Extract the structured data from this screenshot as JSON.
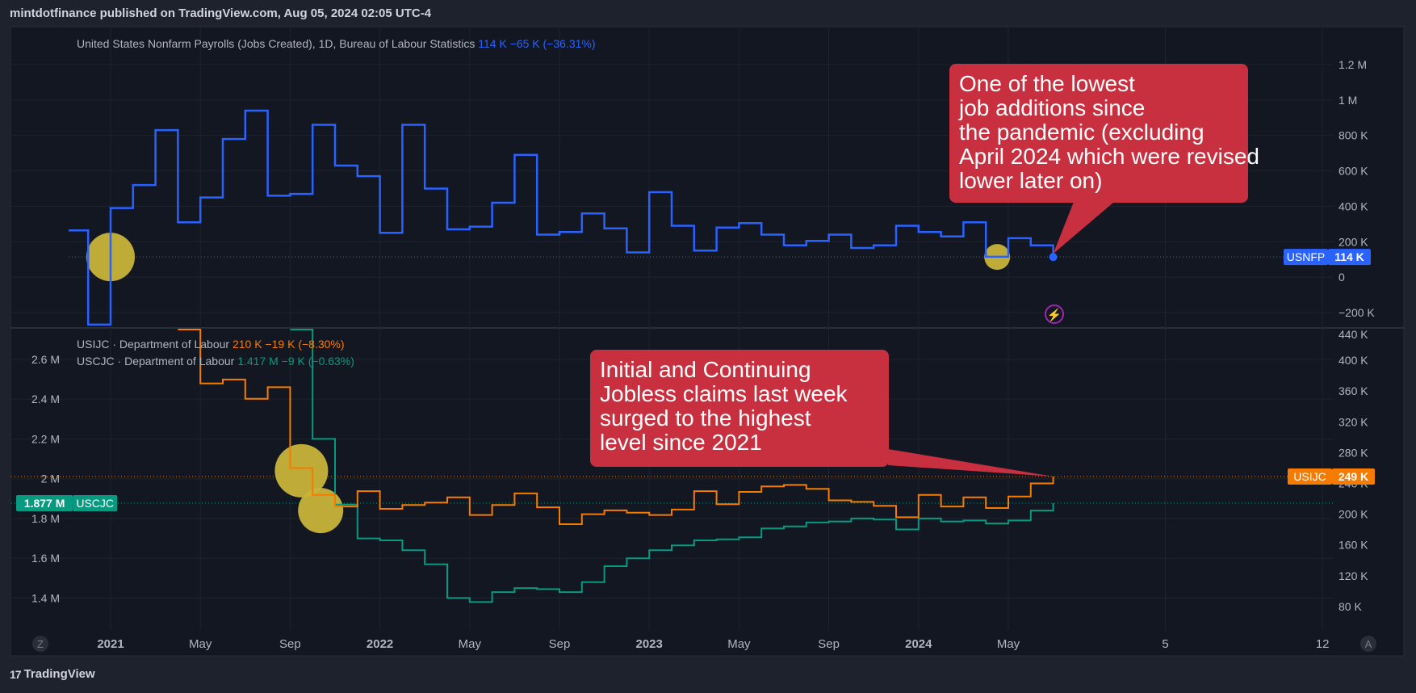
{
  "header": {
    "published": "mintdotfinance published on TradingView.com, Aug 05, 2024 02:05 UTC-4"
  },
  "footer": {
    "brand": "TradingView",
    "brand_icon": "tradingview-logo-icon"
  },
  "colors": {
    "background": "#1e222d",
    "pane": "#131722",
    "nfp": "#2962ff",
    "ijc": "#f57c00",
    "cjc": "#089981",
    "callout": "#c8303f",
    "marker": "#c8b43a"
  },
  "chart_data": [
    {
      "type": "line",
      "step": true,
      "legend": {
        "name": "United States Nonfarm Payrolls (Jobs Created), 1D, Bureau of Labour Statistics",
        "value": "114 K",
        "change": "−65 K (−36.31%)"
      },
      "yticks": [
        "1.2 M",
        "1 M",
        "800 K",
        "600 K",
        "400 K",
        "200 K",
        "0",
        "−200 K"
      ],
      "ylim": [
        -250000,
        1300000
      ],
      "badge": {
        "label": "USNFP",
        "value": "114 K"
      },
      "series": [
        {
          "color": "#2962ff",
          "values": [
            {
              "x": "2020-11",
              "y": 264000
            },
            {
              "x": "2020-12",
              "y": -268000
            },
            {
              "x": "2021-01",
              "y": 390000
            },
            {
              "x": "2021-02",
              "y": 520000
            },
            {
              "x": "2021-03",
              "y": 830000
            },
            {
              "x": "2021-04",
              "y": 310000
            },
            {
              "x": "2021-05",
              "y": 450000
            },
            {
              "x": "2021-06",
              "y": 780000
            },
            {
              "x": "2021-07",
              "y": 940000
            },
            {
              "x": "2021-08",
              "y": 460000
            },
            {
              "x": "2021-09",
              "y": 470000
            },
            {
              "x": "2021-10",
              "y": 860000
            },
            {
              "x": "2021-11",
              "y": 630000
            },
            {
              "x": "2021-12",
              "y": 570000
            },
            {
              "x": "2022-01",
              "y": 250000
            },
            {
              "x": "2022-02",
              "y": 860000
            },
            {
              "x": "2022-03",
              "y": 500000
            },
            {
              "x": "2022-04",
              "y": 270000
            },
            {
              "x": "2022-05",
              "y": 285000
            },
            {
              "x": "2022-06",
              "y": 420000
            },
            {
              "x": "2022-07",
              "y": 690000
            },
            {
              "x": "2022-08",
              "y": 240000
            },
            {
              "x": "2022-09",
              "y": 255000
            },
            {
              "x": "2022-10",
              "y": 360000
            },
            {
              "x": "2022-11",
              "y": 275000
            },
            {
              "x": "2022-12",
              "y": 140000
            },
            {
              "x": "2023-01",
              "y": 480000
            },
            {
              "x": "2023-02",
              "y": 290000
            },
            {
              "x": "2023-03",
              "y": 150000
            },
            {
              "x": "2023-04",
              "y": 280000
            },
            {
              "x": "2023-05",
              "y": 305000
            },
            {
              "x": "2023-06",
              "y": 240000
            },
            {
              "x": "2023-07",
              "y": 180000
            },
            {
              "x": "2023-08",
              "y": 205000
            },
            {
              "x": "2023-09",
              "y": 240000
            },
            {
              "x": "2023-10",
              "y": 165000
            },
            {
              "x": "2023-11",
              "y": 180000
            },
            {
              "x": "2023-12",
              "y": 290000
            },
            {
              "x": "2024-01",
              "y": 255000
            },
            {
              "x": "2024-02",
              "y": 230000
            },
            {
              "x": "2024-03",
              "y": 310000
            },
            {
              "x": "2024-04",
              "y": 115000
            },
            {
              "x": "2024-05",
              "y": 220000
            },
            {
              "x": "2024-06",
              "y": 180000
            },
            {
              "x": "2024-07",
              "y": 114000
            }
          ]
        }
      ],
      "annotations": [
        {
          "text": "One of the lowest job additions since the pandemic (excluding April 2024 which were revised lower later on)",
          "points_to": {
            "x": "2024-07",
            "y": 114000
          }
        }
      ],
      "markers": [
        {
          "x": "2021-01",
          "y": 114000
        },
        {
          "x": "2024-04",
          "y": 114000
        }
      ]
    },
    {
      "type": "line",
      "step": true,
      "legend": [
        {
          "name": "USIJC · Department of Labour",
          "value": "210 K",
          "change": "−19 K (−8.30%)"
        },
        {
          "name": "USCJC · Department of Labour",
          "value": "1.417 M",
          "change": "−9 K (−0.63%)"
        }
      ],
      "yticks_left": [
        "2.6 M",
        "2.4 M",
        "2.2 M",
        "2 M",
        "1.8 M",
        "1.6 M",
        "1.4 M"
      ],
      "yticks_right": [
        "440 K",
        "400 K",
        "360 K",
        "320 K",
        "280 K",
        "240 K",
        "200 K",
        "160 K",
        "120 K",
        "80 K"
      ],
      "ylim_left": [
        1280000,
        2750000
      ],
      "ylim_right": [
        60000,
        440000
      ],
      "badges": [
        {
          "label": "USIJC",
          "value": "249 K"
        },
        {
          "label": "USCJC",
          "value": "1.877 M"
        }
      ],
      "series": [
        {
          "color": "#f57c00",
          "axis": "right",
          "values": [
            {
              "x": "2021-04",
              "y": 440000
            },
            {
              "x": "2021-05",
              "y": 370000
            },
            {
              "x": "2021-06",
              "y": 375000
            },
            {
              "x": "2021-07",
              "y": 350000
            },
            {
              "x": "2021-08",
              "y": 365000
            },
            {
              "x": "2021-09",
              "y": 260000
            },
            {
              "x": "2021-10",
              "y": 225000
            },
            {
              "x": "2021-11",
              "y": 210000
            },
            {
              "x": "2021-12",
              "y": 230000
            },
            {
              "x": "2022-01",
              "y": 207000
            },
            {
              "x": "2022-02",
              "y": 212000
            },
            {
              "x": "2022-03",
              "y": 215000
            },
            {
              "x": "2022-04",
              "y": 222000
            },
            {
              "x": "2022-05",
              "y": 199000
            },
            {
              "x": "2022-06",
              "y": 212000
            },
            {
              "x": "2022-07",
              "y": 227000
            },
            {
              "x": "2022-08",
              "y": 209000
            },
            {
              "x": "2022-09",
              "y": 187000
            },
            {
              "x": "2022-10",
              "y": 200000
            },
            {
              "x": "2022-11",
              "y": 205000
            },
            {
              "x": "2022-12",
              "y": 202000
            },
            {
              "x": "2023-01",
              "y": 199000
            },
            {
              "x": "2023-02",
              "y": 206000
            },
            {
              "x": "2023-03",
              "y": 230000
            },
            {
              "x": "2023-04",
              "y": 213000
            },
            {
              "x": "2023-05",
              "y": 229000
            },
            {
              "x": "2023-06",
              "y": 236000
            },
            {
              "x": "2023-07",
              "y": 238000
            },
            {
              "x": "2023-08",
              "y": 233000
            },
            {
              "x": "2023-09",
              "y": 218000
            },
            {
              "x": "2023-10",
              "y": 216000
            },
            {
              "x": "2023-11",
              "y": 211000
            },
            {
              "x": "2023-12",
              "y": 196000
            },
            {
              "x": "2024-01",
              "y": 225000
            },
            {
              "x": "2024-02",
              "y": 210000
            },
            {
              "x": "2024-03",
              "y": 222000
            },
            {
              "x": "2024-04",
              "y": 208000
            },
            {
              "x": "2024-05",
              "y": 223000
            },
            {
              "x": "2024-06",
              "y": 240000
            },
            {
              "x": "2024-07",
              "y": 249000
            }
          ]
        },
        {
          "color": "#089981",
          "axis": "left",
          "values": [
            {
              "x": "2021-09",
              "y": 2750000
            },
            {
              "x": "2021-10",
              "y": 2200000
            },
            {
              "x": "2021-11",
              "y": 1870000
            },
            {
              "x": "2021-12",
              "y": 1700000
            },
            {
              "x": "2022-01",
              "y": 1690000
            },
            {
              "x": "2022-02",
              "y": 1640000
            },
            {
              "x": "2022-03",
              "y": 1570000
            },
            {
              "x": "2022-04",
              "y": 1400000
            },
            {
              "x": "2022-05",
              "y": 1380000
            },
            {
              "x": "2022-06",
              "y": 1430000
            },
            {
              "x": "2022-07",
              "y": 1450000
            },
            {
              "x": "2022-08",
              "y": 1445000
            },
            {
              "x": "2022-09",
              "y": 1430000
            },
            {
              "x": "2022-10",
              "y": 1480000
            },
            {
              "x": "2022-11",
              "y": 1560000
            },
            {
              "x": "2022-12",
              "y": 1600000
            },
            {
              "x": "2023-01",
              "y": 1640000
            },
            {
              "x": "2023-02",
              "y": 1665000
            },
            {
              "x": "2023-03",
              "y": 1690000
            },
            {
              "x": "2023-04",
              "y": 1695000
            },
            {
              "x": "2023-05",
              "y": 1705000
            },
            {
              "x": "2023-06",
              "y": 1750000
            },
            {
              "x": "2023-07",
              "y": 1760000
            },
            {
              "x": "2023-08",
              "y": 1780000
            },
            {
              "x": "2023-09",
              "y": 1785000
            },
            {
              "x": "2023-10",
              "y": 1800000
            },
            {
              "x": "2023-11",
              "y": 1795000
            },
            {
              "x": "2023-12",
              "y": 1745000
            },
            {
              "x": "2024-01",
              "y": 1800000
            },
            {
              "x": "2024-02",
              "y": 1785000
            },
            {
              "x": "2024-03",
              "y": 1790000
            },
            {
              "x": "2024-04",
              "y": 1775000
            },
            {
              "x": "2024-05",
              "y": 1790000
            },
            {
              "x": "2024-06",
              "y": 1840000
            },
            {
              "x": "2024-07",
              "y": 1877000
            }
          ]
        }
      ],
      "annotations": [
        {
          "text": "Initial and Continuing Jobless claims last week surged to the highest level since 2021",
          "points_to": {
            "x": "2024-07",
            "y": 249000
          }
        }
      ],
      "markers": [
        {
          "x": "2021-09",
          "y": 2040000
        },
        {
          "x": "2021-10",
          "y": 1840000
        }
      ]
    }
  ],
  "x_axis": {
    "ticks": [
      {
        "label": "2021",
        "date": "2021-01",
        "bold": true
      },
      {
        "label": "May",
        "date": "2021-05"
      },
      {
        "label": "Sep",
        "date": "2021-09"
      },
      {
        "label": "2022",
        "date": "2022-01",
        "bold": true
      },
      {
        "label": "May",
        "date": "2022-05"
      },
      {
        "label": "Sep",
        "date": "2022-09"
      },
      {
        "label": "2023",
        "date": "2023-01",
        "bold": true
      },
      {
        "label": "May",
        "date": "2023-05"
      },
      {
        "label": "Sep",
        "date": "2023-09"
      },
      {
        "label": "2024",
        "date": "2024-01",
        "bold": true
      },
      {
        "label": "May",
        "date": "2024-05"
      },
      {
        "label": "5",
        "date": "2024-12"
      },
      {
        "label": "12",
        "date": "2025-07"
      }
    ],
    "left_button": "Z",
    "right_button": "A",
    "lightning_icon": "lightning-icon"
  }
}
